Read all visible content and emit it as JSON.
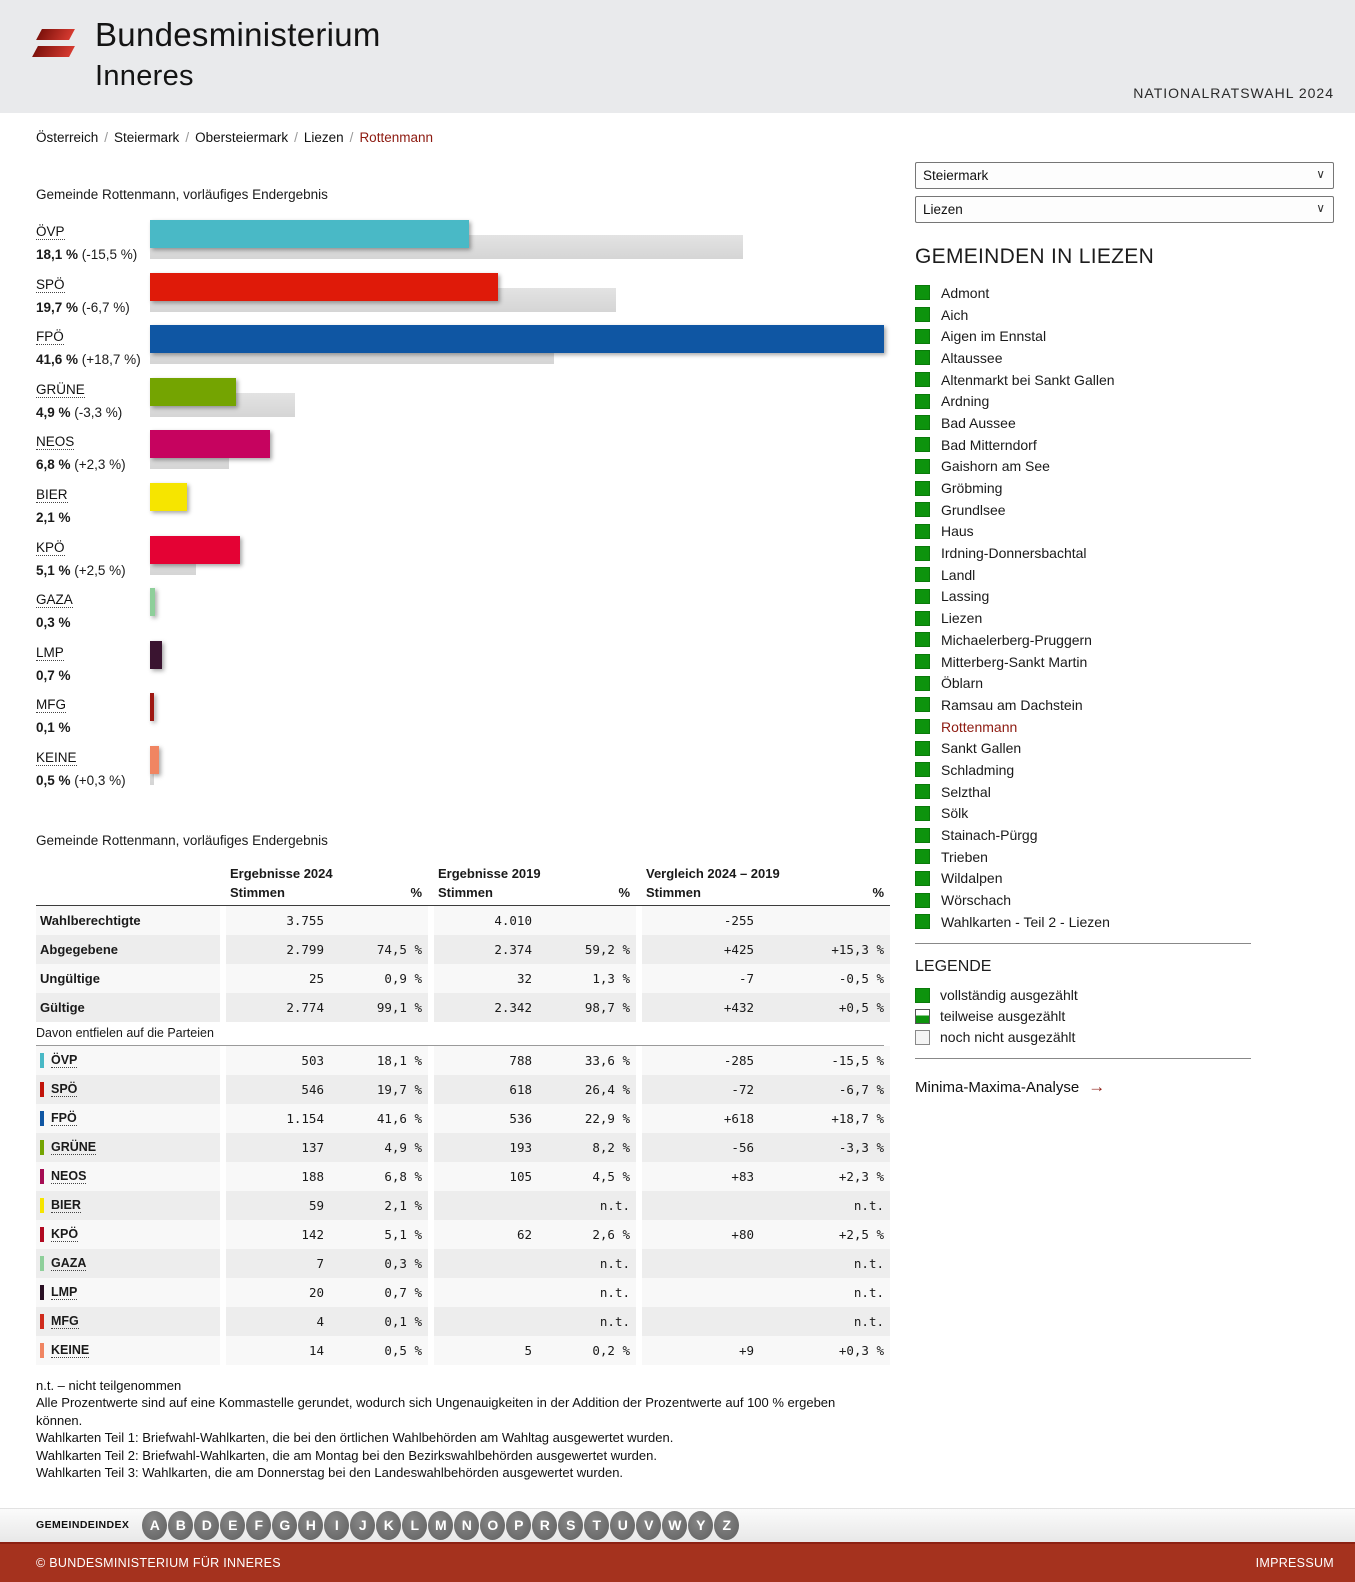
{
  "header": {
    "brand_line1": "Bundesministerium",
    "brand_line2": "Inneres",
    "election_title": "NATIONALRATSWAHL 2024"
  },
  "breadcrumb": {
    "links": [
      "Österreich",
      "Steiermark",
      "Obersteiermark",
      "Liezen"
    ],
    "current": "Rottenmann",
    "separator": "/"
  },
  "controls": {
    "select_state": "Steiermark",
    "select_district": "Liezen"
  },
  "chart_data": {
    "type": "bar",
    "title": "Gemeinde Rottenmann, vorläufiges Endergebnis",
    "categories": [
      "ÖVP",
      "SPÖ",
      "FPÖ",
      "GRÜNE",
      "NEOS",
      "BIER",
      "KPÖ",
      "GAZA",
      "LMP",
      "MFG",
      "KEINE"
    ],
    "series": [
      {
        "name": "Ergebnisse 2024 (%)",
        "values": [
          18.1,
          19.7,
          41.6,
          4.9,
          6.8,
          2.1,
          5.1,
          0.3,
          0.7,
          0.1,
          0.5
        ]
      },
      {
        "name": "Ergebnisse 2019 (%)",
        "values": [
          33.6,
          26.4,
          22.9,
          8.2,
          4.5,
          null,
          2.6,
          null,
          null,
          null,
          0.2
        ]
      }
    ],
    "value_texts": [
      "18,1 %",
      "19,7 %",
      "41,6 %",
      "4,9 %",
      "6,8 %",
      "2,1 %",
      "5,1 %",
      "0,3 %",
      "0,7 %",
      "0,1 %",
      "0,5 %"
    ],
    "diff_texts": [
      "(-15,5 %)",
      "(-6,7 %)",
      "(+18,7 %)",
      "(-3,3 %)",
      "(+2,3 %)",
      "",
      "(+2,5 %)",
      "",
      "",
      "",
      "(+0,3 %)"
    ],
    "colors": [
      "#49b9c6",
      "#df1a09",
      "#0f56a3",
      "#74a401",
      "#c6035f",
      "#f6e500",
      "#e40234",
      "#8ecf9a",
      "#3a1430",
      "#9e1812",
      "#f08562"
    ],
    "color_2019": "#dcdcdc",
    "xlim": [
      0,
      41.6
    ]
  },
  "sidebar": {
    "heading": "GEMEINDEN IN LIEZEN",
    "municipalities": [
      {
        "label": "Admont",
        "current": false
      },
      {
        "label": "Aich",
        "current": false
      },
      {
        "label": "Aigen im Ennstal",
        "current": false
      },
      {
        "label": "Altaussee",
        "current": false
      },
      {
        "label": "Altenmarkt bei Sankt Gallen",
        "current": false
      },
      {
        "label": "Ardning",
        "current": false
      },
      {
        "label": "Bad Aussee",
        "current": false
      },
      {
        "label": "Bad Mitterndorf",
        "current": false
      },
      {
        "label": "Gaishorn am See",
        "current": false
      },
      {
        "label": "Gröbming",
        "current": false
      },
      {
        "label": "Grundlsee",
        "current": false
      },
      {
        "label": "Haus",
        "current": false
      },
      {
        "label": "Irdning-Donnersbachtal",
        "current": false
      },
      {
        "label": "Landl",
        "current": false
      },
      {
        "label": "Lassing",
        "current": false
      },
      {
        "label": "Liezen",
        "current": false
      },
      {
        "label": "Michaelerberg-Pruggern",
        "current": false
      },
      {
        "label": "Mitterberg-Sankt Martin",
        "current": false
      },
      {
        "label": "Öblarn",
        "current": false
      },
      {
        "label": "Ramsau am Dachstein",
        "current": false
      },
      {
        "label": "Rottenmann",
        "current": true
      },
      {
        "label": "Sankt Gallen",
        "current": false
      },
      {
        "label": "Schladming",
        "current": false
      },
      {
        "label": "Selzthal",
        "current": false
      },
      {
        "label": "Sölk",
        "current": false
      },
      {
        "label": "Stainach-Pürgg",
        "current": false
      },
      {
        "label": "Trieben",
        "current": false
      },
      {
        "label": "Wildalpen",
        "current": false
      },
      {
        "label": "Wörschach",
        "current": false
      },
      {
        "label": "Wahlkarten - Teil 2 - Liezen",
        "current": false
      }
    ],
    "legend": {
      "heading": "LEGENDE",
      "items": [
        {
          "label": "vollständig ausgezählt",
          "type": "full"
        },
        {
          "label": "teilweise ausgezählt",
          "type": "partial"
        },
        {
          "label": "noch nicht ausgezählt",
          "type": "empty"
        }
      ]
    },
    "minmax_link": {
      "label": "Minima-Maxima-Analyse",
      "arrow": "→"
    }
  },
  "table": {
    "title": "Gemeinde Rottenmann, vorläufiges Endergebnis",
    "groups": [
      "Ergebnisse 2024",
      "Ergebnisse 2019",
      "Vergleich 2024 – 2019"
    ],
    "subheaders": [
      "Stimmen",
      "%",
      "Stimmen",
      "%",
      "Stimmen",
      "%"
    ],
    "stat_rows": [
      {
        "label": "Wahlberechtigte",
        "cells": [
          "3.755",
          "",
          "4.010",
          "",
          "-255",
          ""
        ]
      },
      {
        "label": "Abgegebene",
        "cells": [
          "2.799",
          "74,5 %",
          "2.374",
          "59,2 %",
          "+425",
          "+15,3 %"
        ]
      },
      {
        "label": "Ungültige",
        "cells": [
          "25",
          "0,9 %",
          "32",
          "1,3 %",
          "-7",
          "-0,5 %"
        ]
      },
      {
        "label": "Gültige",
        "cells": [
          "2.774",
          "99,1 %",
          "2.342",
          "98,7 %",
          "+432",
          "+0,5 %"
        ]
      }
    ],
    "parties_subheader": "Davon entfielen auf die Parteien",
    "party_rows": [
      {
        "party": "ÖVP",
        "color": "#49b9c6",
        "cells": [
          "503",
          "18,1 %",
          "788",
          "33,6 %",
          "-285",
          "-15,5 %"
        ]
      },
      {
        "party": "SPÖ",
        "color": "#c11309",
        "cells": [
          "546",
          "19,7 %",
          "618",
          "26,4 %",
          "-72",
          "-6,7 %"
        ]
      },
      {
        "party": "FPÖ",
        "color": "#0f56a3",
        "cells": [
          "1.154",
          "41,6 %",
          "536",
          "22,9 %",
          "+618",
          "+18,7 %"
        ]
      },
      {
        "party": "GRÜNE",
        "color": "#74a401",
        "cells": [
          "137",
          "4,9 %",
          "193",
          "8,2 %",
          "-56",
          "-3,3 %"
        ]
      },
      {
        "party": "NEOS",
        "color": "#a50d53",
        "cells": [
          "188",
          "6,8 %",
          "105",
          "4,5 %",
          "+83",
          "+2,3 %"
        ]
      },
      {
        "party": "BIER",
        "color": "#f6e500",
        "cells": [
          "59",
          "2,1 %",
          "",
          "n.t.",
          "",
          "n.t."
        ]
      },
      {
        "party": "KPÖ",
        "color": "#b00920",
        "cells": [
          "142",
          "5,1 %",
          "62",
          "2,6 %",
          "+80",
          "+2,5 %"
        ]
      },
      {
        "party": "GAZA",
        "color": "#8ecf9a",
        "cells": [
          "7",
          "0,3 %",
          "",
          "n.t.",
          "",
          "n.t."
        ]
      },
      {
        "party": "LMP",
        "color": "#2a1024",
        "cells": [
          "20",
          "0,7 %",
          "",
          "n.t.",
          "",
          "n.t."
        ]
      },
      {
        "party": "MFG",
        "color": "#cf2a1b",
        "cells": [
          "4",
          "0,1 %",
          "",
          "n.t.",
          "",
          "n.t."
        ]
      },
      {
        "party": "KEINE",
        "color": "#f08562",
        "cells": [
          "14",
          "0,5 %",
          "5",
          "0,2 %",
          "+9",
          "+0,3 %"
        ]
      }
    ]
  },
  "footnotes": [
    "n.t. – nicht teilgenommen",
    "Alle Prozentwerte sind auf eine Kommastelle gerundet, wodurch sich Ungenauigkeiten in der Addition der Prozentwerte auf 100 % ergeben können.",
    "Wahlkarten Teil 1: Briefwahl-Wahlkarten, die bei den örtlichen Wahlbehörden am Wahltag ausgewertet wurden.",
    "Wahlkarten Teil 2: Briefwahl-Wahlkarten, die am Montag bei den Bezirkswahlbehörden ausgewertet wurden.",
    "Wahlkarten Teil 3: Wahlkarten, die am Donnerstag bei den Landeswahlbehörden ausgewertet wurden."
  ],
  "gemeindeindex": {
    "label": "GEMEINDEINDEX",
    "letters": [
      "A",
      "B",
      "D",
      "E",
      "F",
      "G",
      "H",
      "I",
      "J",
      "K",
      "L",
      "M",
      "N",
      "O",
      "P",
      "R",
      "S",
      "T",
      "U",
      "V",
      "W",
      "Y",
      "Z"
    ]
  },
  "footer": {
    "copyright": "© BUNDESMINISTERIUM FÜR INNERES",
    "impressum": "IMPRESSUM"
  }
}
